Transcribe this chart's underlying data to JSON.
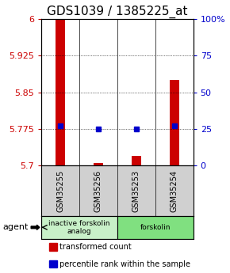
{
  "title": "GDS1039 / 1385225_at",
  "samples": [
    "GSM35255",
    "GSM35256",
    "GSM35253",
    "GSM35254"
  ],
  "red_values": [
    6.0,
    5.705,
    5.72,
    5.875
  ],
  "blue_values": [
    5.782,
    5.775,
    5.775,
    5.782
  ],
  "ylim": [
    5.7,
    6.0
  ],
  "yticks_left": [
    5.7,
    5.775,
    5.85,
    5.925,
    6.0
  ],
  "yticks_right": [
    0,
    25,
    50,
    75,
    100
  ],
  "ytick_labels_left": [
    "5.7",
    "5.775",
    "5.85",
    "5.925",
    "6"
  ],
  "ytick_labels_right": [
    "0",
    "25",
    "50",
    "75",
    "100%"
  ],
  "grid_yticks": [
    5.775,
    5.85,
    5.925
  ],
  "agent_groups": [
    {
      "label": "inactive forskolin\nanalog",
      "samples": [
        0,
        1
      ],
      "color": "#c8f0c8"
    },
    {
      "label": "forskolin",
      "samples": [
        2,
        3
      ],
      "color": "#80e080"
    }
  ],
  "legend_items": [
    {
      "color": "#cc0000",
      "label": "transformed count"
    },
    {
      "color": "#0000cc",
      "label": "percentile rank within the sample"
    }
  ],
  "red_color": "#cc0000",
  "blue_color": "#0000cc",
  "title_fontsize": 11,
  "tick_fontsize": 8,
  "sample_label_fontsize": 7
}
